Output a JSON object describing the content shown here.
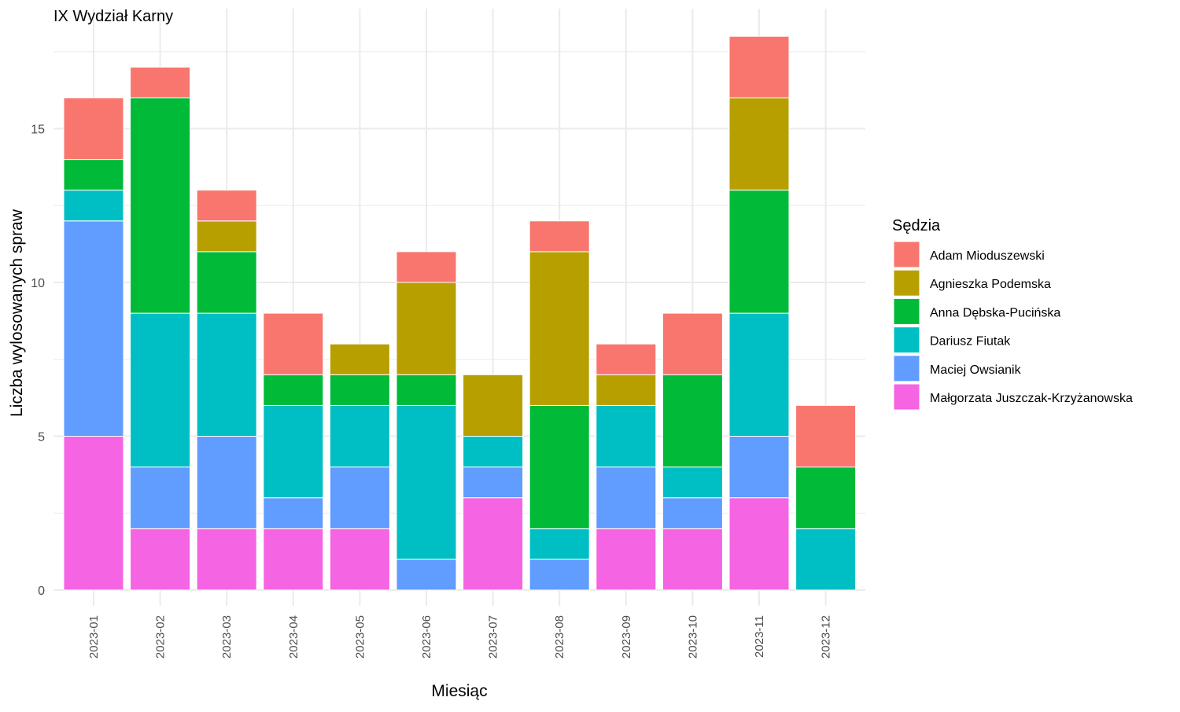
{
  "chart_data": {
    "type": "bar",
    "stacked": true,
    "title": "IX Wydział Karny",
    "xlabel": "Miesiąc",
    "ylabel": "Liczba wylosowanych spraw",
    "ylim": [
      0,
      18.9
    ],
    "yticks": [
      0,
      5,
      10,
      15
    ],
    "grid": true,
    "legend_position": "right",
    "legend_title": "Sędzia",
    "categories": [
      "2023-01",
      "2023-02",
      "2023-03",
      "2023-04",
      "2023-05",
      "2023-06",
      "2023-07",
      "2023-08",
      "2023-09",
      "2023-10",
      "2023-11",
      "2023-12"
    ],
    "series": [
      {
        "name": "Adam Mioduszewski",
        "color": "#F8766D",
        "values": [
          2,
          1,
          1,
          2,
          0,
          1,
          0,
          1,
          1,
          2,
          2,
          2
        ]
      },
      {
        "name": "Agnieszka Podemska",
        "color": "#B79F00",
        "values": [
          0,
          0,
          1,
          0,
          1,
          3,
          2,
          5,
          1,
          0,
          3,
          0
        ]
      },
      {
        "name": "Anna Dębska-Pucińska",
        "color": "#00BA38",
        "values": [
          1,
          7,
          2,
          1,
          1,
          1,
          0,
          4,
          0,
          3,
          4,
          2
        ]
      },
      {
        "name": "Dariusz Fiutak",
        "color": "#00BFC4",
        "values": [
          1,
          5,
          4,
          3,
          2,
          5,
          1,
          1,
          2,
          1,
          4,
          2
        ]
      },
      {
        "name": "Maciej Owsianik",
        "color": "#619CFF",
        "values": [
          7,
          2,
          3,
          1,
          2,
          1,
          1,
          1,
          2,
          1,
          2,
          0
        ]
      },
      {
        "name": "Małgorzata Juszczak-Krzyżanowska",
        "color": "#F564E3",
        "values": [
          5,
          2,
          2,
          2,
          2,
          0,
          3,
          0,
          2,
          2,
          3,
          0
        ]
      }
    ]
  }
}
